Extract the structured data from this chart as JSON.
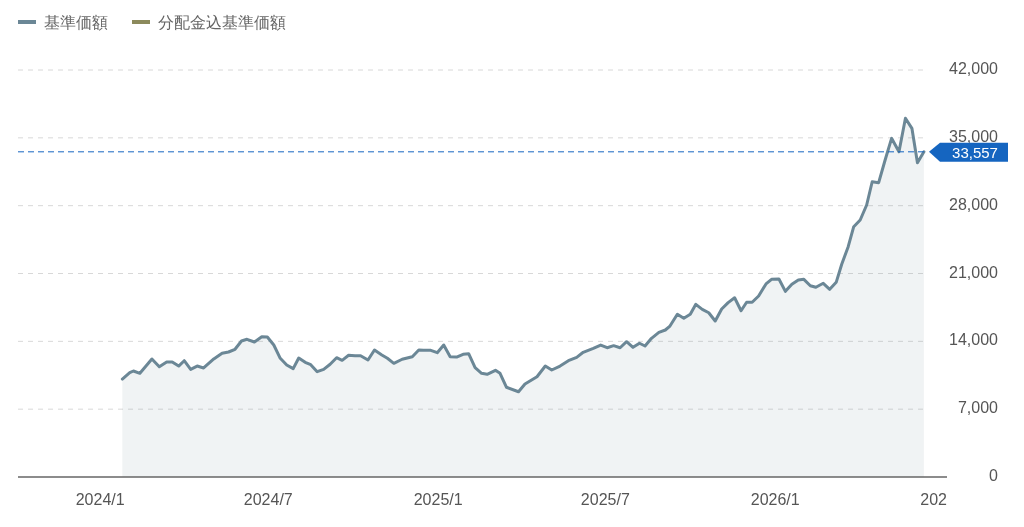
{
  "chart_data": {
    "type": "area",
    "legend": "top left",
    "grid": "y",
    "line_style": "solid",
    "marker": "none",
    "xlim": [
      "2023-10-04",
      "2026-07-06"
    ],
    "xticks": [
      {
        "value": "2024-01-01",
        "label": "2024/1"
      },
      {
        "value": "2024-07-01",
        "label": "2024/7"
      },
      {
        "value": "2025-01-01",
        "label": "2025/1"
      },
      {
        "value": "2025-07-01",
        "label": "2025/7"
      },
      {
        "value": "2026-01-01",
        "label": "2026/1"
      },
      {
        "value": "2026-07-01",
        "label": "202"
      }
    ],
    "ylim": [
      0,
      42000
    ],
    "yticks": [
      {
        "value": 0,
        "label": "0"
      },
      {
        "value": 7000,
        "label": "7,000"
      },
      {
        "value": 14000,
        "label": "14,000"
      },
      {
        "value": 21000,
        "label": "21,000"
      },
      {
        "value": 28000,
        "label": "28,000"
      },
      {
        "value": 35000,
        "label": "35,000"
      },
      {
        "value": 42000,
        "label": "42,000"
      }
    ],
    "ref_lines": [
      {
        "axis": "y",
        "value": 33557,
        "label": "33,557",
        "color": "#1565c0",
        "line_style": "dashed"
      }
    ],
    "series": [
      {
        "name": "基準価額",
        "color": "#6b8796",
        "x": [
          "2024-01-25",
          "2024-02-02",
          "2024-02-06",
          "2024-02-13",
          "2024-02-26",
          "2024-03-05",
          "2024-03-13",
          "2024-03-19",
          "2024-03-26",
          "2024-04-01",
          "2024-04-08",
          "2024-04-15",
          "2024-04-22",
          "2024-05-03",
          "2024-05-12",
          "2024-05-19",
          "2024-05-26",
          "2024-06-02",
          "2024-06-08",
          "2024-06-16",
          "2024-06-24",
          "2024-06-30",
          "2024-07-07",
          "2024-07-14",
          "2024-07-21",
          "2024-07-28",
          "2024-08-03",
          "2024-08-10",
          "2024-08-16",
          "2024-08-23",
          "2024-08-30",
          "2024-09-06",
          "2024-09-13",
          "2024-09-19",
          "2024-09-26",
          "2024-10-03",
          "2024-10-09",
          "2024-10-17",
          "2024-10-24",
          "2024-11-01",
          "2024-11-07",
          "2024-11-14",
          "2024-11-23",
          "2024-12-04",
          "2024-12-11",
          "2024-12-16",
          "2024-12-24",
          "2024-12-31",
          "2025-01-07",
          "2025-01-14",
          "2025-01-21",
          "2025-01-28",
          "2025-02-03",
          "2025-02-10",
          "2025-02-17",
          "2025-02-23",
          "2025-03-04",
          "2025-03-09",
          "2025-03-16",
          "2025-03-29",
          "2025-04-05",
          "2025-04-18",
          "2025-04-27",
          "2025-05-04",
          "2025-05-13",
          "2025-05-22",
          "2025-05-31",
          "2025-06-07",
          "2025-06-18",
          "2025-06-26",
          "2025-07-03",
          "2025-07-10",
          "2025-07-17",
          "2025-07-24",
          "2025-07-31",
          "2025-08-07",
          "2025-08-13",
          "2025-08-20",
          "2025-08-28",
          "2025-09-04",
          "2025-09-09",
          "2025-09-17",
          "2025-09-24",
          "2025-10-01",
          "2025-10-07",
          "2025-10-14",
          "2025-10-21",
          "2025-10-28",
          "2025-11-04",
          "2025-11-11",
          "2025-11-18",
          "2025-11-25",
          "2025-12-01",
          "2025-12-07",
          "2025-12-14",
          "2025-12-22",
          "2025-12-28",
          "2026-01-05",
          "2026-01-12",
          "2026-01-19",
          "2026-01-26",
          "2026-02-01",
          "2026-02-08",
          "2026-02-14",
          "2026-02-22",
          "2026-03-01",
          "2026-03-08",
          "2026-03-14",
          "2026-03-21",
          "2026-03-27",
          "2026-04-03",
          "2026-04-10",
          "2026-04-16",
          "2026-04-23",
          "2026-04-30",
          "2026-05-07",
          "2026-05-15",
          "2026-05-22",
          "2026-05-29",
          "2026-06-04",
          "2026-06-11"
        ],
        "values": [
          10100,
          10760,
          10940,
          10700,
          12180,
          11380,
          11870,
          11870,
          11450,
          12000,
          11110,
          11450,
          11250,
          12180,
          12770,
          12900,
          13180,
          14030,
          14210,
          13930,
          14480,
          14450,
          13620,
          12250,
          11560,
          11180,
          12280,
          11830,
          11590,
          10870,
          11110,
          11630,
          12310,
          12040,
          12560,
          12520,
          12520,
          12070,
          13100,
          12590,
          12250,
          11730,
          12150,
          12410,
          13100,
          13070,
          13070,
          12830,
          13620,
          12410,
          12380,
          12660,
          12720,
          11280,
          10700,
          10600,
          11010,
          10700,
          9260,
          8800,
          9600,
          10350,
          11450,
          11040,
          11450,
          12000,
          12350,
          12870,
          13280,
          13620,
          13340,
          13550,
          13340,
          13960,
          13380,
          13800,
          13520,
          14310,
          14930,
          15170,
          15580,
          16790,
          16380,
          16790,
          17820,
          17300,
          16950,
          16100,
          17340,
          17990,
          18500,
          17160,
          18030,
          18030,
          18680,
          19920,
          20400,
          20430,
          19160,
          19890,
          20330,
          20400,
          19740,
          19580,
          19990,
          19370,
          20090,
          21950,
          23770,
          25830,
          26520,
          28070,
          30470,
          30370,
          32710,
          34950,
          33570,
          37020,
          35980,
          32430,
          33557
        ]
      },
      {
        "name": "分配金込基準価額",
        "color": "#8c8a5c"
      }
    ]
  }
}
